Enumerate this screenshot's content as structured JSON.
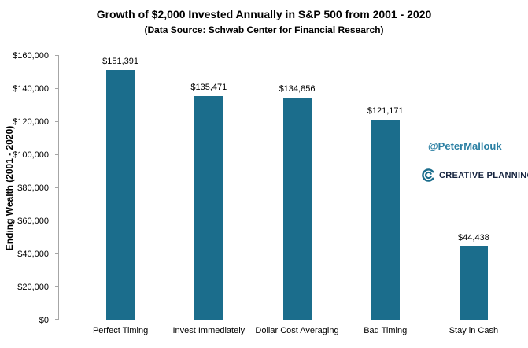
{
  "chart_data": {
    "type": "bar",
    "title": "Growth of $2,000 Invested Annually in S&P 500 from 2001 - 2020",
    "subtitle": "(Data Source: Schwab Center for Financial Research)",
    "ylabel": "Ending Wealth (2001 - 2020)",
    "xlabel": "",
    "categories": [
      "Perfect Timing",
      "Invest Immediately",
      "Dollar Cost Averaging",
      "Bad Timing",
      "Stay in Cash"
    ],
    "values": [
      151391,
      135471,
      134856,
      121171,
      44438
    ],
    "value_labels": [
      "$151,391",
      "$135,471",
      "$134,856",
      "$121,171",
      "$44,438"
    ],
    "ylim": [
      0,
      160000
    ],
    "y_ticks": [
      {
        "value": 0,
        "label": "$0"
      },
      {
        "value": 20000,
        "label": "$20,000"
      },
      {
        "value": 40000,
        "label": "$40,000"
      },
      {
        "value": 60000,
        "label": "$60,000"
      },
      {
        "value": 80000,
        "label": "$80,000"
      },
      {
        "value": 100000,
        "label": "$100,000"
      },
      {
        "value": 120000,
        "label": "$120,000"
      },
      {
        "value": 140000,
        "label": "$140,000"
      },
      {
        "value": 160000,
        "label": "$160,000"
      }
    ],
    "bar_color": "#1b6d8c",
    "grid": false,
    "legend": "none"
  },
  "watermark": {
    "handle": "@PeterMallouk",
    "handle_color": "#2a7fa3",
    "logo_text": "CREATIVE PLANNING",
    "logo_reg": "®",
    "logo_color": "#16243f",
    "icon_color": "#1b6d8c"
  }
}
